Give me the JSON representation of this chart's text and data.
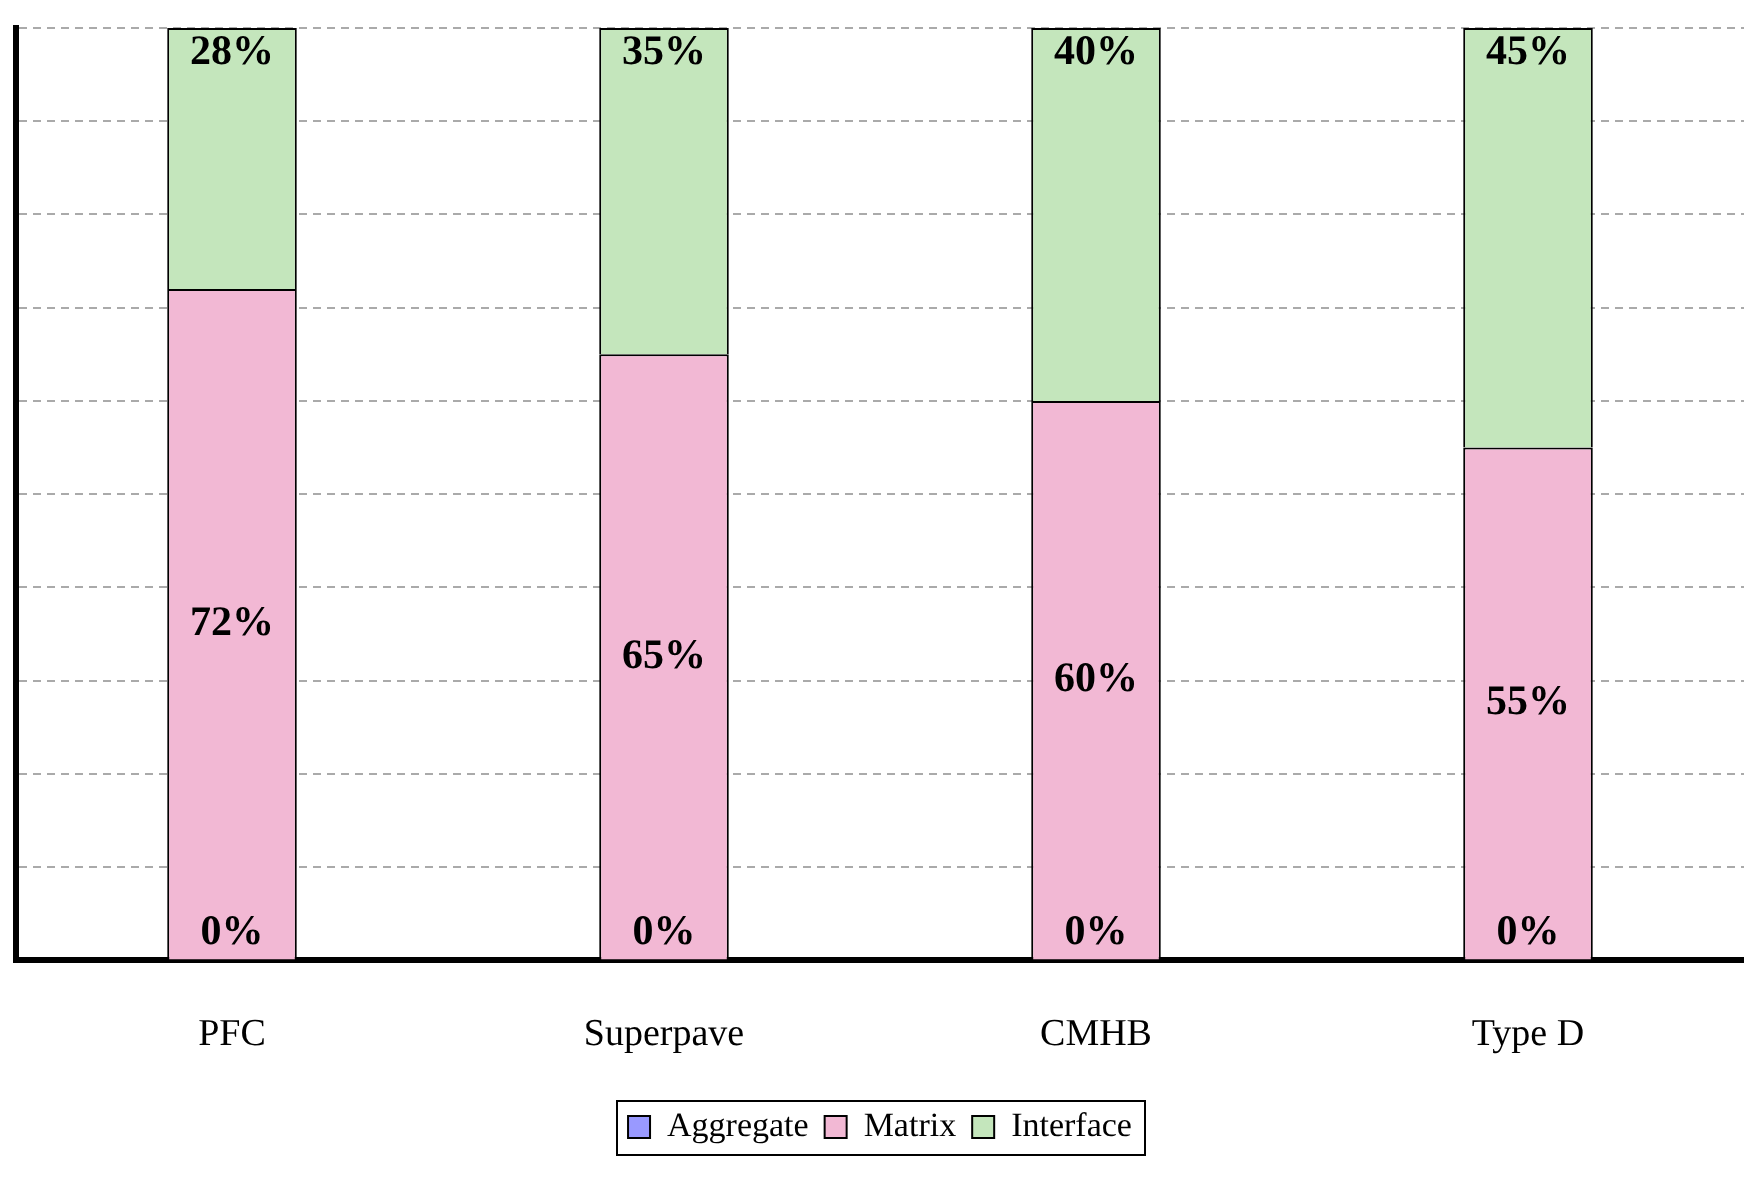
{
  "chart_data": {
    "type": "bar",
    "stacked": true,
    "categories": [
      "PFC",
      "Superpave",
      "CMHB",
      "Type D"
    ],
    "series": [
      {
        "name": "Aggregate",
        "color": "#9999ff",
        "values": [
          0,
          0,
          0,
          0
        ]
      },
      {
        "name": "Matrix",
        "color": "#f2b8d4",
        "values": [
          72,
          65,
          60,
          55
        ],
        "value_labels": [
          "72%",
          "65%",
          "60%",
          "55%"
        ]
      },
      {
        "name": "Interface",
        "color": "#c4e6bc",
        "values": [
          28,
          35,
          40,
          45
        ],
        "value_labels": [
          "28%",
          "35%",
          "40%",
          "45%"
        ]
      }
    ],
    "ylim": [
      0,
      100
    ],
    "yticks": [
      {
        "value": 0,
        "label": null
      },
      {
        "value": 10,
        "label": null
      },
      {
        "value": 20,
        "label": null
      },
      {
        "value": 30,
        "label": null
      },
      {
        "value": 40,
        "label": null
      },
      {
        "value": 50,
        "label": null
      },
      {
        "value": 60,
        "label": null
      },
      {
        "value": 70,
        "label": null
      },
      {
        "value": 80,
        "label": null
      },
      {
        "value": 90,
        "label": null
      },
      {
        "value": 100,
        "label": null
      }
    ],
    "annotations": [
      {
        "text": "0%",
        "x": "PFC",
        "y": 0
      },
      {
        "text": "0%",
        "x": "Superpave",
        "y": 0
      },
      {
        "text": "0%",
        "x": "CMHB",
        "y": 0
      },
      {
        "text": "0%",
        "x": "Type D",
        "y": 0
      }
    ],
    "tick_labels": "x",
    "grid": "y",
    "legend": "bottom"
  }
}
